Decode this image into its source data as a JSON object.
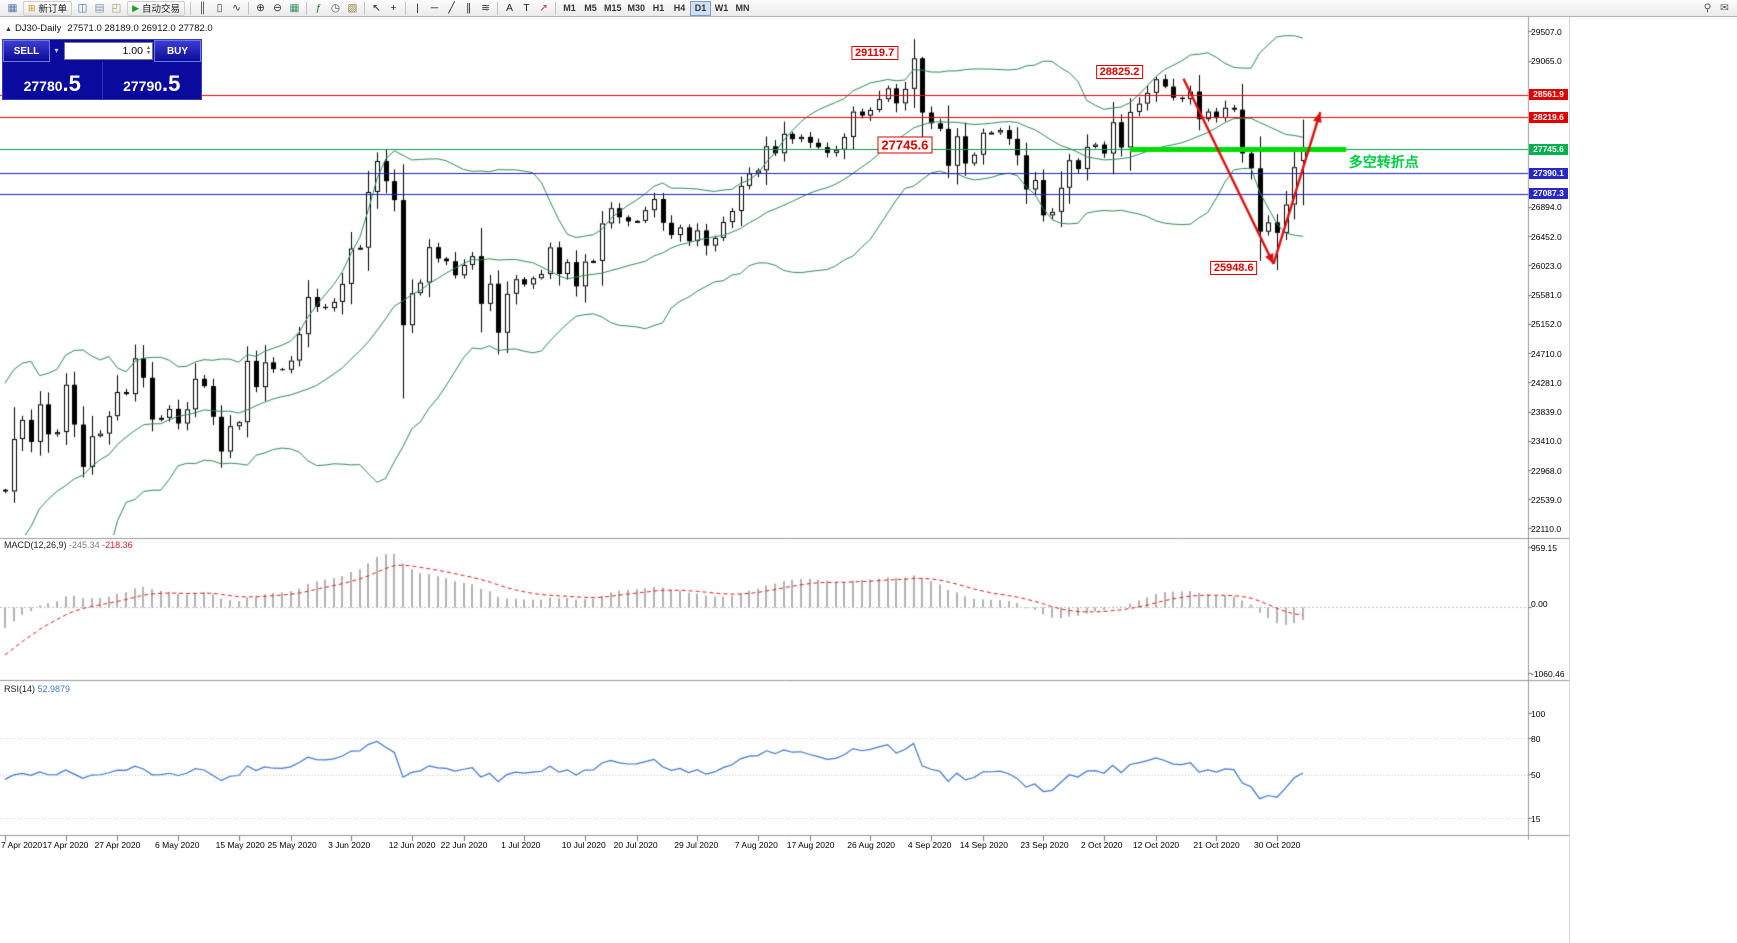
{
  "toolbar": {
    "items": [
      {
        "type": "icon",
        "name": "new-chart-icon",
        "glyph": "▦",
        "color": "#4a6fa5"
      },
      {
        "type": "button",
        "name": "new-order-button",
        "label": "新订单",
        "glyph": "⊞",
        "glyph_color": "#c89018"
      },
      {
        "type": "icon",
        "name": "market-watch-icon",
        "glyph": "◫",
        "color": "#3a6ea5"
      },
      {
        "type": "icon",
        "name": "data-window-icon",
        "glyph": "▤",
        "color": "#7a8aa0"
      },
      {
        "type": "icon",
        "name": "navigator-icon",
        "glyph": "◰",
        "color": "#9a9a5a"
      },
      {
        "type": "button",
        "name": "autotrade-button",
        "label": "自动交易",
        "glyph": "▶",
        "glyph_color": "#18a018"
      },
      {
        "type": "sep"
      },
      {
        "type": "icon",
        "name": "bar-chart-icon",
        "glyph": "║",
        "color": "#333333"
      },
      {
        "type": "icon",
        "name": "candlestick-chart-icon",
        "glyph": "▯",
        "color": "#333333"
      },
      {
        "type": "icon",
        "name": "line-chart-icon",
        "glyph": "∿",
        "color": "#333333"
      },
      {
        "type": "sep"
      },
      {
        "type": "icon",
        "name": "zoom-in-icon",
        "glyph": "⊕",
        "color": "#333333"
      },
      {
        "type": "icon",
        "name": "zoom-out-icon",
        "glyph": "⊖",
        "color": "#333333"
      },
      {
        "type": "icon",
        "name": "tile-windows-icon",
        "glyph": "▦",
        "color": "#2e8b57"
      },
      {
        "type": "sep"
      },
      {
        "type": "icon",
        "name": "indicators-icon",
        "glyph": "ƒ",
        "color": "#1a7a1a"
      },
      {
        "type": "icon",
        "name": "periods-icon",
        "glyph": "◷",
        "color": "#555555"
      },
      {
        "type": "icon",
        "name": "templates-icon",
        "glyph": "▧",
        "color": "#8a7a3a"
      },
      {
        "type": "sep"
      },
      {
        "type": "icon",
        "name": "cursor-icon",
        "glyph": "↖",
        "color": "#222222"
      },
      {
        "type": "icon",
        "name": "crosshair-icon",
        "glyph": "+",
        "color": "#222222"
      },
      {
        "type": "sep"
      },
      {
        "type": "icon",
        "name": "vertical-line-icon",
        "glyph": "|",
        "color": "#222222"
      },
      {
        "type": "icon",
        "name": "horizontal-line-icon",
        "glyph": "─",
        "color": "#222222"
      },
      {
        "type": "icon",
        "name": "trendline-icon",
        "glyph": "╱",
        "color": "#222222"
      },
      {
        "type": "icon",
        "name": "equidistant-channel-icon",
        "glyph": "∥",
        "color": "#222222"
      },
      {
        "type": "icon",
        "name": "fibonacci-icon",
        "glyph": "≋",
        "color": "#222222"
      },
      {
        "type": "sep"
      },
      {
        "type": "icon",
        "name": "text-icon",
        "glyph": "A",
        "color": "#222222"
      },
      {
        "type": "icon",
        "name": "text-label-icon",
        "glyph": "T",
        "color": "#222222"
      },
      {
        "type": "icon",
        "name": "arrows-icon",
        "glyph": "↗",
        "color": "#b04040"
      },
      {
        "type": "sep"
      }
    ],
    "timeframes": [
      "M1",
      "M5",
      "M15",
      "M30",
      "H1",
      "H4",
      "D1",
      "W1",
      "MN"
    ],
    "active_timeframe": "D1",
    "right_items": [
      {
        "type": "icon",
        "name": "search-icon",
        "glyph": "⚲",
        "color": "#555555"
      },
      {
        "type": "icon",
        "name": "community-icon",
        "glyph": "✉",
        "color": "#555555"
      }
    ]
  },
  "chart_header": {
    "collapse_glyph": "▲",
    "symbol_period": "DJ30-Daily",
    "ohlc": "27571.0 28189.0 26912.0 27782.0"
  },
  "trade_panel": {
    "sell_label": "SELL",
    "buy_label": "BUY",
    "volume": "1.00",
    "dropdown_glyph": "▾",
    "spin_up": "▴",
    "spin_down": "▾",
    "sell_price_main": "27780",
    "sell_price_frac": ".5",
    "buy_price_main": "27790",
    "buy_price_frac": ".5"
  },
  "indicators": {
    "macd_label": "MACD(12,26,9)",
    "macd_value": "-245.34",
    "macd_signal_value": "-218.36",
    "macd_scale": [
      "959.15",
      "0.00",
      "-1060.46"
    ],
    "rsi_label": "RSI(14)",
    "rsi_value": "52.9879",
    "rsi_scale": [
      "100",
      "80",
      "50",
      "15"
    ]
  },
  "price_scale": {
    "ticks": [
      29507.0,
      29065.0,
      26894.0,
      26452.0,
      26023.0,
      25581.0,
      25152.0,
      24710.0,
      24281.0,
      23839.0,
      23410.0,
      22968.0,
      22539.0,
      22110.0
    ],
    "badges": [
      {
        "value": "28561.9",
        "price": 28561.9,
        "color": "#E00000"
      },
      {
        "value": "28219.6",
        "price": 28219.6,
        "color": "#E00000"
      },
      {
        "value": "27745.6",
        "price": 27745.6,
        "color": "#00B050"
      },
      {
        "value": "27390.1",
        "price": 27390.1,
        "color": "#2828C8"
      },
      {
        "value": "27087.3",
        "price": 27087.3,
        "color": "#2828C8"
      }
    ]
  },
  "chart_data": {
    "type": "candlestick",
    "symbol": "DJ30",
    "timeframe": "Daily",
    "y_range": [
      22110,
      29507
    ],
    "pre_close": [
      29348,
      29102,
      28992,
      27081,
      26121,
      25766,
      25409,
      26703,
      25018,
      23851,
      21200,
      23185,
      20188,
      21237,
      19898,
      20087,
      19173,
      19591,
      18591,
      20704,
      21200,
      22552,
      21636,
      21917,
      20943,
      21413,
      22327,
      21052,
      21917,
      22679,
      22653,
      23434,
      23719,
      22680
    ],
    "close": [
      22654,
      23434,
      23719,
      23391,
      23950,
      23504,
      23538,
      24242,
      23650,
      23019,
      23476,
      23515,
      23775,
      24134,
      24102,
      24634,
      24346,
      23724,
      23750,
      23883,
      23665,
      23876,
      24331,
      24222,
      23765,
      23248,
      23625,
      23685,
      24597,
      24207,
      24576,
      24474,
      24465,
      24602,
      24995,
      25548,
      25401,
      25383,
      25475,
      25743,
      26270,
      26282,
      27111,
      27572,
      27272,
      26990,
      25128,
      25605,
      25763,
      26290,
      26120,
      26080,
      25871,
      26025,
      26156,
      25446,
      25746,
      25016,
      25596,
      25813,
      25735,
      25827,
      25890,
      26287,
      25890,
      26067,
      25706,
      26075,
      26085,
      26643,
      26870,
      26735,
      26672,
      26681,
      26840,
      27006,
      26652,
      26470,
      26584,
      26379,
      26539,
      26313,
      26428,
      26664,
      26828,
      27202,
      27387,
      27433,
      27791,
      27687,
      27977,
      27897,
      27931,
      27844,
      27778,
      27693,
      27740,
      27930,
      28308,
      28248,
      28332,
      28492,
      28654,
      28430,
      28646,
      29101,
      28293,
      28133,
      28050,
      27501,
      27940,
      27535,
      27666,
      27993,
      27996,
      28032,
      27902,
      27657,
      27148,
      27288,
      26763,
      26815,
      27174,
      27584,
      27452,
      27782,
      27817,
      27683,
      28149,
      27773,
      28303,
      28426,
      28587,
      28790,
      28680,
      28514,
      28494,
      28606,
      28195,
      28308,
      28211,
      28364,
      28336,
      27685,
      27463,
      26520,
      26659,
      26502,
      26925,
      27480,
      27782
    ],
    "overrides": [
      {
        "i": 106,
        "h": 29119.7
      },
      {
        "i": 133,
        "h": 28825.2
      },
      {
        "i": 147,
        "l": 25948.6
      },
      {
        "i": 150,
        "o": 27571.0,
        "h": 28189.0,
        "l": 26912.0,
        "c": 27782.0
      }
    ],
    "date_labels": [
      {
        "t": "7 Apr 2020",
        "i": 0
      },
      {
        "t": "17 Apr 2020",
        "i": 7
      },
      {
        "t": "27 Apr 2020",
        "i": 13
      },
      {
        "t": "6 May 2020",
        "i": 20
      },
      {
        "t": "15 May 2020",
        "i": 27
      },
      {
        "t": "25 May 2020",
        "i": 33
      },
      {
        "t": "3 Jun 2020",
        "i": 40
      },
      {
        "t": "12 Jun 2020",
        "i": 47
      },
      {
        "t": "22 Jun 2020",
        "i": 53
      },
      {
        "t": "1 Jul 2020",
        "i": 60
      },
      {
        "t": "10 Jul 2020",
        "i": 67
      },
      {
        "t": "20 Jul 2020",
        "i": 73
      },
      {
        "t": "29 Jul 2020",
        "i": 80
      },
      {
        "t": "7 Aug 2020",
        "i": 87
      },
      {
        "t": "17 Aug 2020",
        "i": 93
      },
      {
        "t": "26 Aug 2020",
        "i": 100
      },
      {
        "t": "4 Sep 2020",
        "i": 107
      },
      {
        "t": "14 Sep 2020",
        "i": 113
      },
      {
        "t": "23 Sep 2020",
        "i": 120
      },
      {
        "t": "2 Oct 2020",
        "i": 127
      },
      {
        "t": "12 Oct 2020",
        "i": 133
      },
      {
        "t": "21 Oct 2020",
        "i": 140
      },
      {
        "t": "30 Oct 2020",
        "i": 147
      }
    ],
    "hlines": [
      {
        "price": 28561.9,
        "color": "#F00000",
        "width": 1.2
      },
      {
        "price": 28219.6,
        "color": "#F00000",
        "width": 1.2
      },
      {
        "price": 27745.6,
        "color": "#00A050",
        "width": 1
      },
      {
        "price": 27745.6,
        "color": "#00DC00",
        "width": 5,
        "from_i": 130,
        "to_i": 155
      },
      {
        "price": 27390.1,
        "color": "#2020C0",
        "width": 1.2
      },
      {
        "price": 27087.3,
        "color": "#2020C0",
        "width": 1.2
      }
    ],
    "annotations": [
      {
        "text": "29119.7",
        "i": 100.5,
        "price": 29181,
        "size": "sm"
      },
      {
        "text": "28825.2",
        "i": 128.8,
        "price": 28900,
        "size": "sm"
      },
      {
        "text": "27745.6",
        "i": 104,
        "price": 27805,
        "size": "lg"
      },
      {
        "text": "25948.6",
        "i": 142,
        "price": 25986,
        "size": "sm"
      }
    ],
    "note": {
      "text": "多空转折点",
      "i": 155.3,
      "price": 27700,
      "color": "#00CC44"
    },
    "arrows": [
      {
        "from": {
          "i": 136.2,
          "price": 28796
        },
        "to": {
          "i": 146.6,
          "price": 26040
        }
      },
      {
        "from": {
          "i": 146.6,
          "price": 26040
        },
        "to": {
          "i": 152,
          "price": 28300
        }
      }
    ],
    "bollinger": {
      "period": 20,
      "deviation": 2,
      "color": "#2e8b57"
    },
    "macd": {
      "fast": 12,
      "slow": 26,
      "signal": 9,
      "range": [
        -1060.46,
        959.15
      ],
      "hist_color": "#b2b2b2",
      "signal_color": "#e02020"
    },
    "rsi": {
      "period": 14,
      "range": [
        0,
        100
      ],
      "levels": [
        80,
        50,
        15
      ],
      "color": "#3f78c8"
    }
  },
  "colors": {
    "candle_outline": "#000000",
    "bull_body": "#ffffff",
    "bear_body": "#000000",
    "arrow": "#dd1111",
    "panel_bg": "#0a0a9c"
  }
}
